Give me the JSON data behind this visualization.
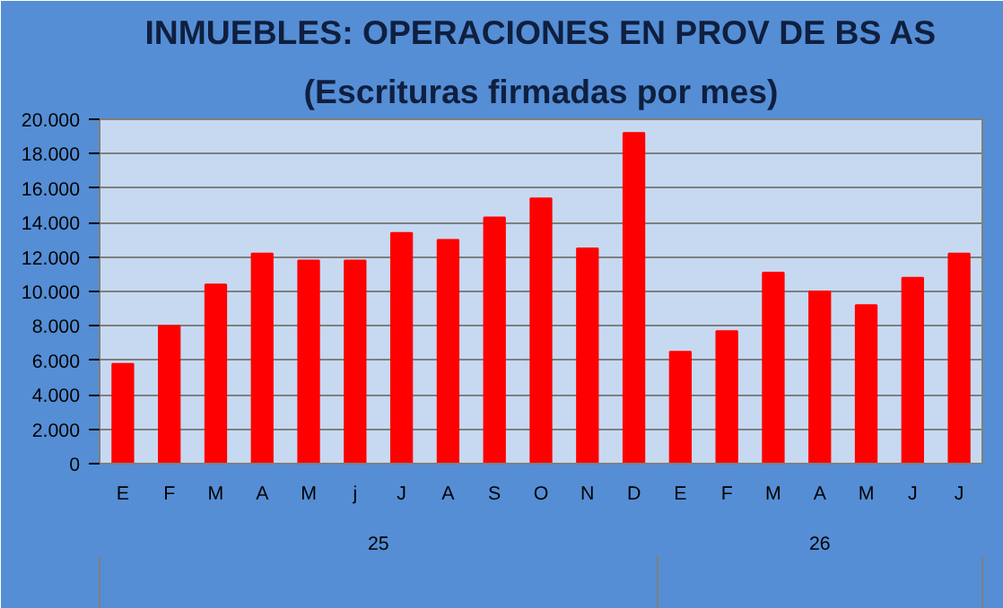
{
  "chart_data": {
    "type": "bar",
    "title": "INMUEBLES: OPERACIONES EN PROV DE BS AS",
    "subtitle": "(Escrituras firmadas por mes)",
    "categories": [
      "E",
      "F",
      "M",
      "A",
      "M",
      "j",
      "J",
      "A",
      "S",
      "O",
      "N",
      "D",
      "E",
      "F",
      "M",
      "A",
      "M",
      "J",
      "J"
    ],
    "values": [
      5800,
      8000,
      10400,
      12200,
      11800,
      11800,
      13400,
      13000,
      14300,
      15400,
      12500,
      19200,
      6500,
      7700,
      11100,
      10000,
      9200,
      10800,
      12200
    ],
    "color": "#ff0000",
    "annotations": [
      "25",
      "26"
    ],
    "ylim": [
      0,
      20000
    ],
    "yticks": [
      0,
      {
        "value": 2000,
        "label": "2.000"
      },
      {
        "value": 4000,
        "label": "4.000"
      },
      {
        "value": 6000,
        "label": "6.000"
      },
      {
        "value": 8000,
        "label": "8.000"
      },
      {
        "value": 10000,
        "label": "10.000"
      },
      {
        "value": 12000,
        "label": "12.000"
      },
      {
        "value": 14000,
        "label": "14.000"
      },
      {
        "value": 16000,
        "label": "16.000"
      },
      {
        "value": 18000,
        "label": "18.000"
      },
      {
        "value": 20000,
        "label": "20.000"
      }
    ],
    "grid": "y"
  }
}
